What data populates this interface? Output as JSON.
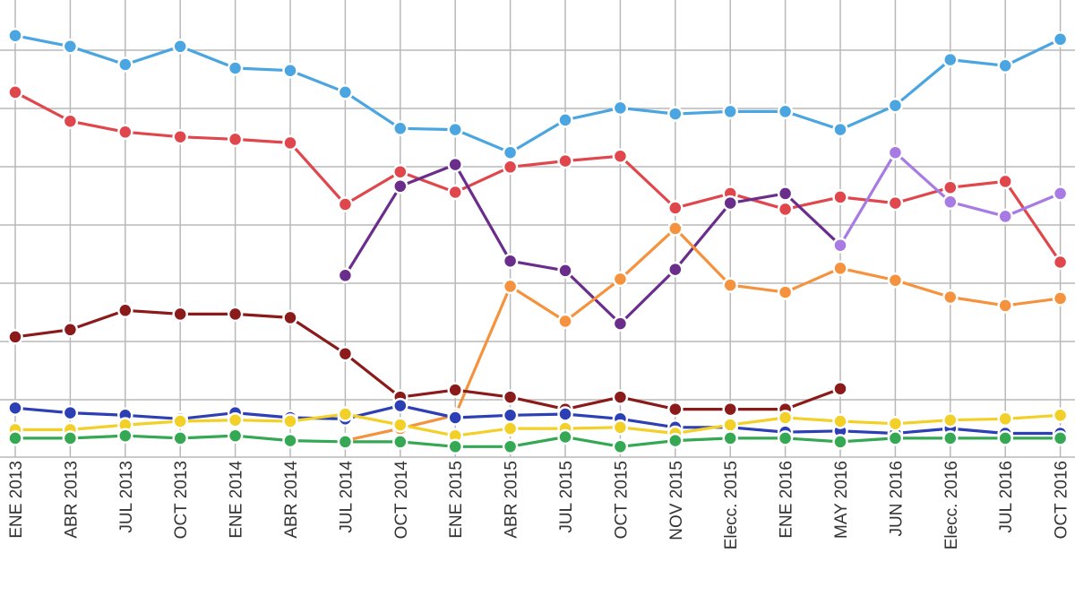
{
  "chart_data": {
    "type": "line",
    "categories": [
      "ENE 2013",
      "ABR 2013",
      "JUL 2013",
      "OCT 2013",
      "ENE 2014",
      "ABR 2014",
      "JUL 2014",
      "OCT 2014",
      "ENE 2015",
      "ABR 2015",
      "JUL 2015",
      "OCT 2015",
      "NOV 2015",
      "Elecc. 2015",
      "ENE 2016",
      "MAY 2016",
      "JUN 2016",
      "Elecc. 2016",
      "JUL 2016",
      "OCT 2016"
    ],
    "ylim": [
      0,
      38
    ],
    "grid": true,
    "legend": "none",
    "series": [
      {
        "color": "#4aa5e0",
        "values": [
          34.6,
          33.7,
          32.2,
          33.7,
          31.9,
          31.7,
          29.9,
          26.9,
          26.8,
          24.9,
          27.6,
          28.6,
          28.1,
          28.3,
          28.3,
          26.8,
          28.8,
          32.6,
          32.1,
          34.3
        ]
      },
      {
        "color": "#e0474c",
        "values": [
          29.9,
          27.5,
          26.6,
          26.2,
          26.0,
          25.7,
          20.6,
          23.3,
          21.6,
          23.7,
          24.2,
          24.6,
          20.3,
          21.5,
          20.2,
          21.2,
          20.7,
          22.0,
          22.5,
          15.8
        ]
      },
      {
        "color": "#6a2d8c",
        "values": [
          null,
          null,
          null,
          null,
          null,
          null,
          14.7,
          22.1,
          23.9,
          15.9,
          15.1,
          10.7,
          15.2,
          20.7,
          21.5,
          17.2,
          null,
          null,
          null,
          null
        ]
      },
      {
        "color": "#a87ae4",
        "values": [
          null,
          null,
          null,
          null,
          null,
          null,
          null,
          null,
          null,
          null,
          null,
          null,
          null,
          null,
          null,
          17.2,
          24.9,
          20.8,
          19.6,
          21.5
        ]
      },
      {
        "color": "#f5923e",
        "values": [
          null,
          null,
          null,
          null,
          null,
          null,
          1.0,
          2.0,
          3.1,
          13.8,
          10.9,
          14.4,
          18.6,
          13.9,
          13.3,
          15.3,
          14.3,
          12.9,
          12.2,
          12.8
        ]
      },
      {
        "color": "#8b1a1a",
        "values": [
          9.6,
          10.2,
          11.8,
          11.5,
          11.5,
          11.2,
          8.2,
          4.6,
          5.2,
          4.6,
          3.6,
          4.6,
          3.6,
          3.6,
          3.6,
          5.3,
          null,
          null,
          null,
          null
        ]
      },
      {
        "color": "#2d3fb5",
        "values": [
          3.7,
          3.3,
          3.1,
          2.8,
          3.3,
          2.9,
          2.8,
          3.9,
          2.9,
          3.1,
          3.2,
          2.8,
          2.1,
          2.1,
          1.7,
          1.8,
          1.6,
          2.0,
          1.6,
          1.6
        ]
      },
      {
        "color": "#f2d027",
        "values": [
          1.9,
          1.9,
          2.3,
          2.6,
          2.7,
          2.6,
          3.2,
          2.3,
          1.4,
          2.0,
          2.0,
          2.1,
          1.6,
          2.3,
          2.9,
          2.6,
          2.4,
          2.7,
          2.8,
          3.1
        ]
      },
      {
        "color": "#34a853",
        "values": [
          1.2,
          1.2,
          1.4,
          1.2,
          1.4,
          1.0,
          0.9,
          0.9,
          0.5,
          0.5,
          1.3,
          0.5,
          1.0,
          1.2,
          1.2,
          0.9,
          1.2,
          1.2,
          1.2,
          1.2
        ]
      }
    ]
  }
}
